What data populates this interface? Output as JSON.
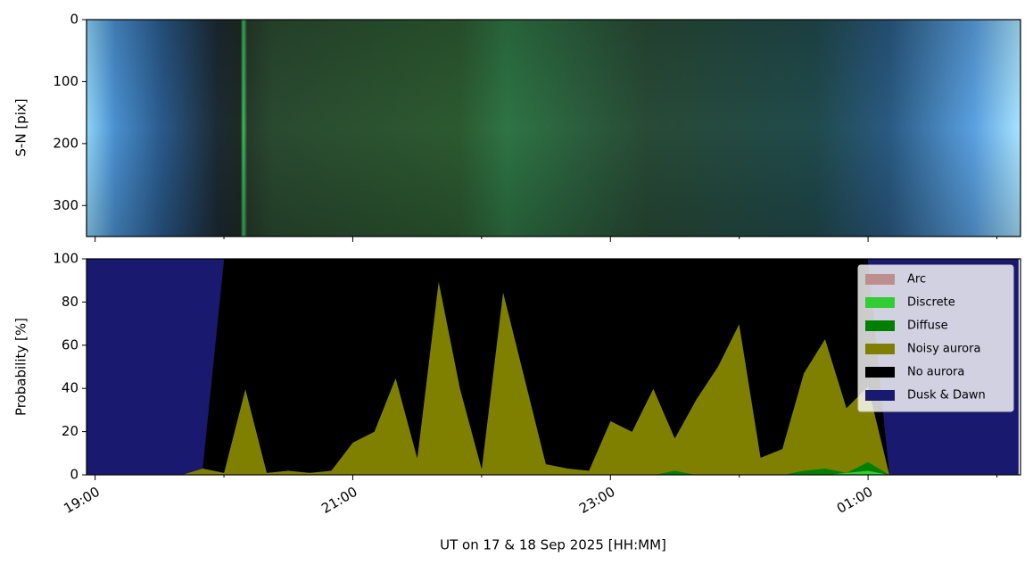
{
  "chart_data": [
    {
      "type": "image",
      "ylabel": "S-N [pix]",
      "ylim": [
        0,
        350
      ],
      "y_inverted": true,
      "yticks": [
        0,
        100,
        200,
        300
      ]
    },
    {
      "type": "stacked_area",
      "ylabel": "Probability [%]",
      "xlabel": "UT on 17 & 18 Sep 2025 [HH:MM]",
      "xlim": [
        "18:56",
        "02:11"
      ],
      "xticks": [
        "19:00",
        "21:00",
        "23:00",
        "01:00"
      ],
      "xminorticks": [
        "20:00",
        "22:00",
        "00:00",
        "02:00"
      ],
      "ylim": [
        0,
        100
      ],
      "yticks": [
        0,
        20,
        40,
        60,
        80,
        100
      ],
      "legend": "upper right",
      "x": [
        "18:56",
        "19:00",
        "19:10",
        "19:20",
        "19:30",
        "19:40",
        "19:50",
        "20:00",
        "20:10",
        "20:20",
        "20:30",
        "20:40",
        "20:50",
        "21:00",
        "21:10",
        "21:20",
        "21:30",
        "21:40",
        "21:50",
        "22:00",
        "22:10",
        "22:20",
        "22:30",
        "22:40",
        "22:50",
        "23:00",
        "23:10",
        "23:20",
        "23:30",
        "23:40",
        "23:50",
        "00:00",
        "00:10",
        "00:20",
        "00:30",
        "00:40",
        "00:50",
        "01:00",
        "01:10",
        "01:20",
        "01:30",
        "01:40",
        "01:50",
        "02:00",
        "02:10"
      ],
      "series": [
        {
          "name": "Arc",
          "color": "#bc8f8f",
          "values": [
            0,
            0,
            0,
            0,
            0,
            0,
            0,
            0,
            0,
            0,
            0,
            0,
            0,
            0,
            0,
            0,
            0,
            0,
            0,
            0,
            0,
            0,
            0,
            0,
            0,
            0,
            0,
            0,
            0,
            0,
            0,
            0,
            0,
            0,
            0,
            0,
            0,
            0,
            0,
            0,
            0,
            0,
            0,
            0,
            0
          ]
        },
        {
          "name": "Discrete",
          "color": "#32cd32",
          "values": [
            0,
            0,
            0,
            0,
            0,
            0,
            0,
            0,
            0,
            0,
            0,
            0,
            0,
            0,
            0,
            0,
            0,
            0,
            0,
            0,
            0,
            0,
            0,
            0,
            0,
            0,
            0,
            0,
            0,
            0,
            0,
            0,
            0,
            0,
            0,
            0,
            1,
            2,
            0,
            0,
            0,
            0,
            0,
            0,
            0
          ]
        },
        {
          "name": "Diffuse",
          "color": "#008000",
          "values": [
            0,
            0,
            0,
            0,
            0,
            0,
            0,
            0,
            0,
            0,
            0,
            0,
            0,
            0,
            0,
            0,
            0,
            0,
            0,
            0,
            0,
            0,
            0,
            0,
            0,
            0,
            0,
            0,
            2,
            0,
            0,
            0,
            0,
            0,
            2,
            3,
            0,
            4,
            0,
            0,
            0,
            0,
            0,
            0,
            0
          ]
        },
        {
          "name": "Noisy aurora",
          "color": "#808000",
          "values": [
            0,
            0,
            0,
            0,
            0,
            0,
            3,
            1,
            40,
            1,
            2,
            1,
            2,
            15,
            20,
            45,
            8,
            90,
            40,
            3,
            85,
            45,
            5,
            3,
            2,
            25,
            20,
            40,
            15,
            35,
            50,
            70,
            8,
            12,
            45,
            60,
            30,
            35,
            0,
            0,
            0,
            0,
            0,
            0,
            0
          ]
        },
        {
          "name": "No aurora",
          "color": "#000000",
          "values": [
            0,
            0,
            0,
            0,
            0,
            0,
            0,
            99,
            60,
            99,
            98,
            99,
            98,
            85,
            80,
            55,
            92,
            10,
            60,
            97,
            15,
            55,
            95,
            97,
            98,
            75,
            80,
            60,
            83,
            65,
            50,
            30,
            92,
            88,
            53,
            37,
            69,
            59,
            0,
            0,
            0,
            0,
            0,
            0,
            0
          ]
        },
        {
          "name": "Dusk & Dawn",
          "color": "#191970",
          "values": [
            100,
            100,
            100,
            100,
            100,
            100,
            97,
            0,
            0,
            0,
            0,
            0,
            0,
            0,
            0,
            0,
            0,
            0,
            0,
            0,
            0,
            0,
            0,
            0,
            0,
            0,
            0,
            0,
            0,
            0,
            0,
            0,
            0,
            0,
            0,
            0,
            0,
            0,
            100,
            100,
            100,
            100,
            100,
            100,
            100
          ]
        }
      ]
    }
  ]
}
